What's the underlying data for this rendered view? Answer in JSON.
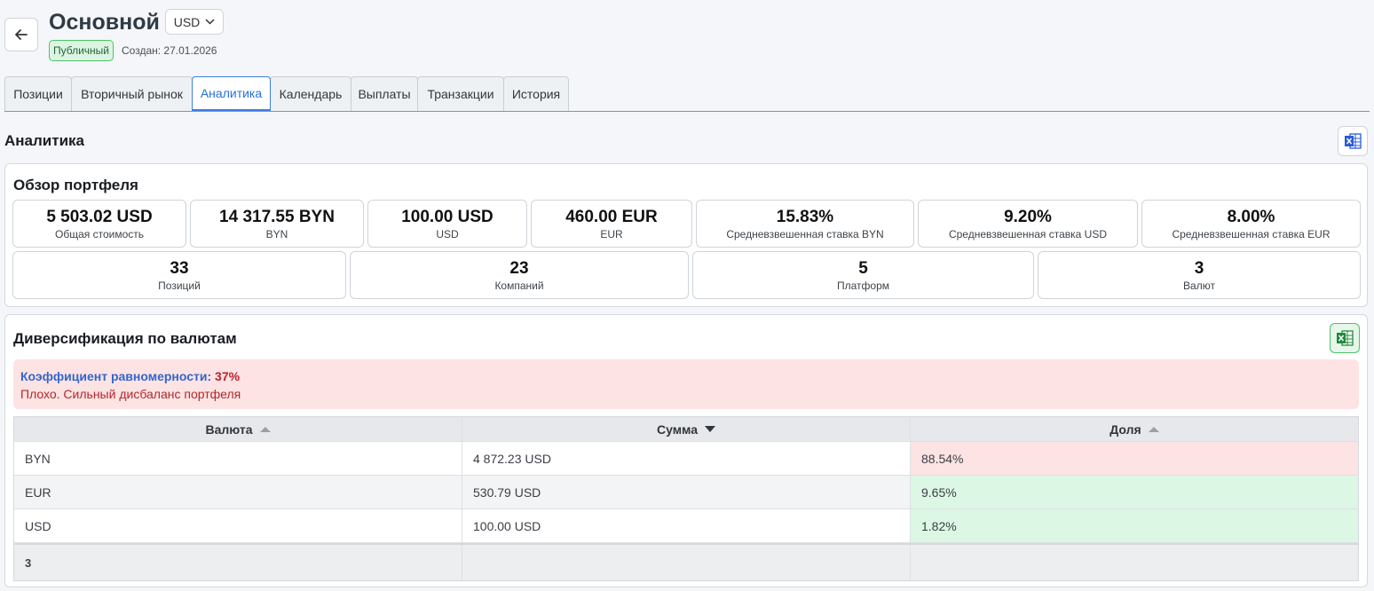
{
  "header": {
    "title": "Основной",
    "currency": "USD",
    "badge": "Публичный",
    "created": "Создан: 27.01.2026"
  },
  "tabs": [
    {
      "label": "Позиции"
    },
    {
      "label": "Вторичный рынок"
    },
    {
      "label": "Аналитика",
      "active": true
    },
    {
      "label": "Календарь"
    },
    {
      "label": "Выплаты"
    },
    {
      "label": "Транзакции"
    },
    {
      "label": "История"
    }
  ],
  "section_title": "Аналитика",
  "overview": {
    "title": "Обзор портфеля",
    "row1": [
      {
        "value": "5 503.02 USD",
        "label": "Общая стоимость"
      },
      {
        "value": "14 317.55 BYN",
        "label": "BYN"
      },
      {
        "value": "100.00 USD",
        "label": "USD"
      },
      {
        "value": "460.00 EUR",
        "label": "EUR"
      },
      {
        "value": "15.83%",
        "label": "Средневзвешенная ставка BYN"
      },
      {
        "value": "9.20%",
        "label": "Средневзвешенная ставка USD"
      },
      {
        "value": "8.00%",
        "label": "Средневзвешенная ставка EUR"
      }
    ],
    "row2": [
      {
        "value": "33",
        "label": "Позиций"
      },
      {
        "value": "23",
        "label": "Компаний"
      },
      {
        "value": "5",
        "label": "Платформ"
      },
      {
        "value": "3",
        "label": "Валют"
      }
    ]
  },
  "diversification": {
    "title": "Диверсификация по валютам",
    "coef_label": "Коэффициент равномерности:",
    "coef_value": "37%",
    "verdict": "Плохо. Сильный дисбаланс портфеля",
    "columns": [
      "Валюта",
      "Сумма",
      "Доля"
    ],
    "rows": [
      {
        "currency": "BYN",
        "amount": "4 872.23 USD",
        "share": "88.54%"
      },
      {
        "currency": "EUR",
        "amount": "530.79 USD",
        "share": "9.65%"
      },
      {
        "currency": "USD",
        "amount": "100.00 USD",
        "share": "1.82%"
      }
    ],
    "footer_count": "3"
  },
  "colors": {
    "accent": "#3d7de8",
    "badge_green": "#4cc26a",
    "bad_red": "#fde3e3",
    "good_green": "#dcf7e4",
    "excel_green": "#1f8a3b",
    "excel_blue": "#2a5bd7"
  }
}
